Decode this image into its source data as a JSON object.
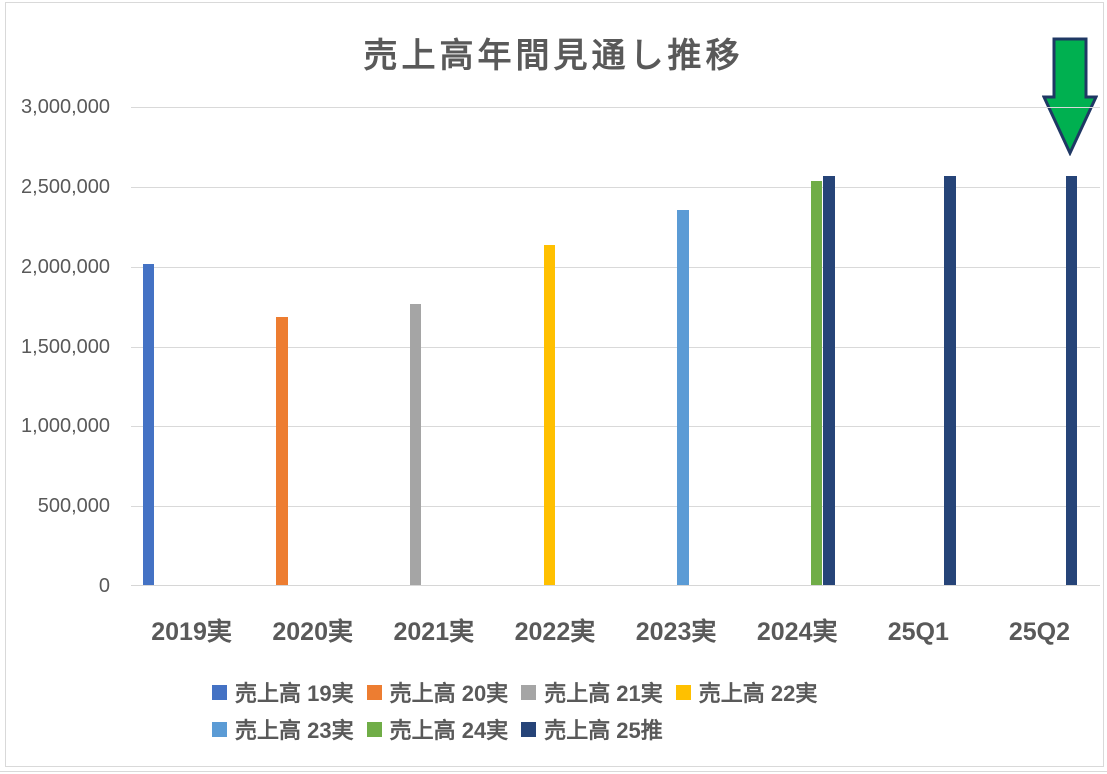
{
  "title": "売上高年間見通し推移",
  "annotations": {
    "arrow": {
      "name": "green-down-arrow",
      "direction": "down",
      "fill_color": "#00B050",
      "stroke_color": "#1F3864"
    }
  },
  "colors": {
    "title_text": "#595959",
    "axis_text": "#595959",
    "gridline": "#D9D9D9"
  },
  "chart_data": {
    "type": "bar",
    "title": "売上高年間見通し推移",
    "xlabel": "",
    "ylabel": "",
    "categories": [
      "2019実",
      "2020実",
      "2021実",
      "2022実",
      "2023実",
      "2024実",
      "25Q1",
      "25Q2"
    ],
    "ylim": [
      0,
      3000000
    ],
    "grid": true,
    "legend_position": "bottom",
    "y_ticks": [
      {
        "label": "3,000,000",
        "value": 3000000
      },
      {
        "label": "2,500,000",
        "value": 2500000
      },
      {
        "label": "2,000,000",
        "value": 2000000
      },
      {
        "label": "1,500,000",
        "value": 1500000
      },
      {
        "label": "1,000,000",
        "value": 1000000
      },
      {
        "label": "500,000",
        "value": 500000
      },
      {
        "label": "0",
        "value": 0
      }
    ],
    "series": [
      {
        "name": "売上高 19実",
        "color": "#4472C4",
        "points": [
          {
            "category": "2019実",
            "value": 2010000
          }
        ]
      },
      {
        "name": "売上高 20実",
        "color": "#ED7D31",
        "points": [
          {
            "category": "2020実",
            "value": 1680000
          }
        ]
      },
      {
        "name": "売上高 21実",
        "color": "#A5A5A5",
        "points": [
          {
            "category": "2021実",
            "value": 1760000
          }
        ]
      },
      {
        "name": "売上高 22実",
        "color": "#FFC000",
        "points": [
          {
            "category": "2022実",
            "value": 2130000
          }
        ]
      },
      {
        "name": "売上高 23実",
        "color": "#5B9BD5",
        "points": [
          {
            "category": "2023実",
            "value": 2350000
          }
        ]
      },
      {
        "name": "売上高 24実",
        "color": "#70AD47",
        "points": [
          {
            "category": "2024実",
            "value": 2530000
          }
        ]
      },
      {
        "name": "売上高 25推",
        "color": "#264478",
        "points": [
          {
            "category": "2024実",
            "value": 2560000
          },
          {
            "category": "25Q1",
            "value": 2560000
          },
          {
            "category": "25Q2",
            "value": 2560000
          }
        ]
      }
    ]
  }
}
